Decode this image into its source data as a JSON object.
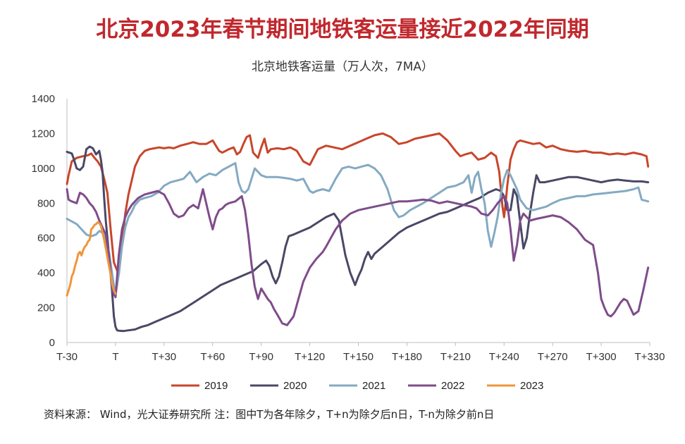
{
  "header": {
    "title": "北京2023年春节期间地铁客运量接近2022年同期",
    "subtitle": "北京地铁客运量（万人次，7MA）"
  },
  "footer": {
    "note": "资料来源： Wind，光大证券研究所 注：图中T为各年除夕，T+n为除夕后n日，T-n为除夕前n日"
  },
  "chart_data": {
    "type": "line",
    "title": "北京地铁客运量（万人次，7MA）",
    "xlabel": "",
    "ylabel": "",
    "xlim": [
      -30,
      330
    ],
    "ylim": [
      0,
      1400
    ],
    "yticks": [
      0,
      200,
      400,
      600,
      800,
      1000,
      1200,
      1400
    ],
    "xtick_values": [
      -30,
      0,
      30,
      60,
      90,
      120,
      150,
      180,
      210,
      240,
      270,
      300,
      330
    ],
    "xtick_labels": [
      "T-30",
      "T",
      "T+30",
      "T+60",
      "T+90",
      "T+120",
      "T+150",
      "T+180",
      "T+210",
      "T+240",
      "T+270",
      "T+300",
      "T+330"
    ],
    "grid": false,
    "legend_position": "bottom",
    "series": [
      {
        "name": "2019",
        "color": "#c8462b",
        "x": [
          -30,
          -29,
          -27,
          -24,
          -20,
          -17,
          -15,
          -13,
          -11,
          -9,
          -7,
          -5,
          -3,
          -1,
          2,
          4,
          6,
          8,
          10,
          12,
          15,
          18,
          21,
          24,
          27,
          30,
          33,
          36,
          40,
          44,
          48,
          52,
          56,
          60,
          62,
          64,
          66,
          70,
          73,
          75,
          77,
          79,
          81,
          83,
          85,
          88,
          90,
          92,
          94,
          96,
          100,
          104,
          108,
          112,
          116,
          120,
          125,
          130,
          135,
          140,
          145,
          150,
          155,
          160,
          165,
          170,
          175,
          180,
          185,
          190,
          195,
          200,
          205,
          210,
          213,
          216,
          220,
          224,
          228,
          232,
          235,
          237,
          238,
          239,
          240,
          241,
          242,
          244,
          246,
          248,
          250,
          254,
          258,
          262,
          266,
          270,
          275,
          280,
          285,
          290,
          295,
          300,
          305,
          310,
          315,
          320,
          325,
          328,
          329
        ],
        "y": [
          910,
          960,
          1040,
          1060,
          1070,
          1075,
          1085,
          1060,
          1040,
          1010,
          940,
          860,
          650,
          460,
          390,
          560,
          740,
          850,
          930,
          1010,
          1070,
          1100,
          1110,
          1115,
          1120,
          1115,
          1120,
          1115,
          1130,
          1140,
          1150,
          1140,
          1140,
          1160,
          1130,
          1100,
          1090,
          1110,
          1120,
          1080,
          1095,
          1140,
          1180,
          1190,
          1090,
          1060,
          1120,
          1170,
          1090,
          1110,
          1115,
          1110,
          1120,
          1100,
          1040,
          1020,
          1110,
          1130,
          1120,
          1110,
          1130,
          1150,
          1170,
          1190,
          1200,
          1180,
          1140,
          1150,
          1170,
          1180,
          1190,
          1200,
          1160,
          1100,
          1070,
          1080,
          1090,
          1050,
          1060,
          1090,
          1070,
          980,
          880,
          780,
          720,
          800,
          900,
          1050,
          1110,
          1150,
          1160,
          1150,
          1140,
          1145,
          1120,
          1130,
          1110,
          1100,
          1095,
          1100,
          1090,
          1090,
          1080,
          1085,
          1080,
          1090,
          1080,
          1070,
          1010
        ]
      },
      {
        "name": "2020",
        "color": "#4a4866",
        "x": [
          -30,
          -27,
          -26,
          -24,
          -22,
          -20,
          -18,
          -16,
          -14,
          -12,
          -10,
          -9,
          -8,
          -7,
          -6,
          -4,
          -2,
          -1,
          0,
          1,
          2,
          3,
          5,
          8,
          12,
          16,
          20,
          25,
          30,
          35,
          40,
          45,
          50,
          55,
          60,
          65,
          70,
          75,
          80,
          85,
          90,
          93,
          95,
          97,
          99,
          101,
          103,
          105,
          107,
          110,
          115,
          120,
          125,
          130,
          135,
          138,
          140,
          142,
          145,
          148,
          150,
          152,
          154,
          156,
          158,
          160,
          165,
          170,
          175,
          180,
          185,
          190,
          195,
          200,
          205,
          210,
          215,
          220,
          225,
          230,
          235,
          238,
          240,
          242,
          244,
          246,
          248,
          250,
          252,
          254,
          256,
          258,
          260,
          262,
          265,
          270,
          275,
          280,
          285,
          290,
          295,
          300,
          305,
          310,
          315,
          320,
          325,
          329
        ],
        "y": [
          1095,
          1085,
          1060,
          1000,
          990,
          1010,
          1110,
          1125,
          1115,
          1080,
          1100,
          1050,
          980,
          830,
          700,
          500,
          280,
          150,
          90,
          70,
          68,
          67,
          66,
          70,
          75,
          90,
          100,
          120,
          140,
          160,
          180,
          210,
          240,
          270,
          300,
          330,
          350,
          370,
          390,
          410,
          450,
          470,
          440,
          380,
          340,
          380,
          460,
          550,
          610,
          620,
          640,
          660,
          690,
          720,
          740,
          700,
          600,
          500,
          400,
          330,
          380,
          420,
          480,
          520,
          480,
          510,
          550,
          590,
          630,
          660,
          680,
          700,
          720,
          740,
          750,
          770,
          790,
          810,
          830,
          860,
          880,
          870,
          840,
          760,
          760,
          880,
          840,
          690,
          540,
          600,
          740,
          860,
          960,
          920,
          920,
          930,
          940,
          950,
          950,
          940,
          930,
          920,
          930,
          935,
          930,
          925,
          925,
          920
        ]
      },
      {
        "name": "2021",
        "color": "#84aac2",
        "x": [
          -30,
          -27,
          -24,
          -21,
          -18,
          -15,
          -12,
          -10,
          -8,
          -6,
          -4,
          -2,
          0,
          2,
          4,
          6,
          8,
          10,
          12,
          15,
          18,
          22,
          26,
          30,
          34,
          38,
          42,
          46,
          50,
          54,
          58,
          62,
          66,
          70,
          74,
          76,
          78,
          80,
          82,
          84,
          86,
          88,
          90,
          93,
          96,
          100,
          104,
          108,
          112,
          116,
          120,
          122,
          124,
          128,
          132,
          136,
          140,
          144,
          148,
          152,
          156,
          160,
          164,
          168,
          170,
          172,
          175,
          178,
          182,
          186,
          190,
          195,
          200,
          205,
          210,
          215,
          218,
          220,
          222,
          224,
          226,
          228,
          230,
          232,
          234,
          236,
          238,
          240,
          242,
          244,
          246,
          248,
          250,
          254,
          258,
          262,
          266,
          270,
          275,
          280,
          285,
          290,
          295,
          300,
          305,
          310,
          315,
          320,
          323,
          325,
          327,
          329
        ],
        "y": [
          710,
          695,
          680,
          650,
          620,
          610,
          620,
          640,
          630,
          590,
          520,
          390,
          270,
          390,
          550,
          660,
          720,
          750,
          790,
          820,
          830,
          840,
          860,
          900,
          920,
          930,
          940,
          980,
          920,
          950,
          970,
          960,
          990,
          1010,
          1030,
          920,
          870,
          860,
          880,
          940,
          1000,
          980,
          960,
          950,
          950,
          950,
          945,
          940,
          930,
          940,
          870,
          860,
          870,
          880,
          870,
          940,
          1000,
          1010,
          1000,
          1010,
          1020,
          1000,
          960,
          880,
          820,
          760,
          720,
          730,
          760,
          780,
          800,
          830,
          860,
          890,
          900,
          920,
          960,
          860,
          950,
          980,
          880,
          800,
          640,
          550,
          630,
          720,
          850,
          940,
          990,
          960,
          920,
          880,
          820,
          770,
          760,
          770,
          780,
          800,
          820,
          830,
          840,
          840,
          850,
          855,
          860,
          865,
          870,
          880,
          890,
          820,
          815,
          810
        ]
      },
      {
        "name": "2022",
        "color": "#7f4c8a",
        "x": [
          -30,
          -29,
          -27,
          -24,
          -22,
          -20,
          -18,
          -16,
          -14,
          -12,
          -10,
          -8,
          -6,
          -4,
          -2,
          0,
          2,
          4,
          6,
          8,
          10,
          14,
          18,
          22,
          26,
          30,
          33,
          36,
          39,
          42,
          45,
          48,
          51,
          54,
          56,
          58,
          60,
          62,
          64,
          66,
          68,
          70,
          74,
          78,
          80,
          82,
          84,
          86,
          88,
          90,
          92,
          94,
          96,
          98,
          100,
          103,
          106,
          110,
          113,
          116,
          120,
          124,
          128,
          130,
          133,
          136,
          140,
          145,
          150,
          155,
          160,
          165,
          170,
          175,
          180,
          185,
          190,
          195,
          200,
          205,
          210,
          215,
          220,
          223,
          226,
          230,
          233,
          236,
          238,
          240,
          242,
          244,
          246,
          248,
          250,
          252,
          254,
          256,
          260,
          265,
          270,
          275,
          280,
          285,
          290,
          295,
          298,
          300,
          302,
          304,
          306,
          308,
          310,
          312,
          314,
          316,
          318,
          320,
          323,
          326,
          329
        ],
        "y": [
          880,
          820,
          810,
          800,
          860,
          850,
          830,
          800,
          780,
          750,
          700,
          660,
          620,
          500,
          300,
          260,
          500,
          650,
          720,
          760,
          790,
          830,
          850,
          860,
          870,
          850,
          800,
          740,
          720,
          730,
          770,
          790,
          770,
          880,
          800,
          720,
          650,
          720,
          760,
          770,
          790,
          800,
          810,
          840,
          760,
          620,
          450,
          320,
          250,
          310,
          280,
          250,
          230,
          190,
          160,
          110,
          100,
          150,
          250,
          350,
          430,
          480,
          520,
          550,
          600,
          650,
          700,
          740,
          760,
          770,
          780,
          790,
          800,
          810,
          810,
          815,
          820,
          815,
          800,
          810,
          800,
          790,
          780,
          770,
          740,
          730,
          760,
          800,
          820,
          840,
          800,
          650,
          470,
          560,
          700,
          740,
          720,
          700,
          710,
          720,
          730,
          720,
          690,
          650,
          590,
          560,
          400,
          250,
          200,
          160,
          150,
          170,
          200,
          230,
          250,
          240,
          200,
          160,
          180,
          300,
          430
        ]
      },
      {
        "name": "2023",
        "color": "#f0953a",
        "x": [
          -30,
          -29,
          -28,
          -27,
          -26,
          -25,
          -24,
          -23,
          -22,
          -21,
          -20,
          -19,
          -18,
          -17,
          -16,
          -15,
          -14,
          -13,
          -12,
          -11,
          -10,
          -9,
          -8,
          -7,
          -6,
          -5,
          -4,
          -3,
          -2,
          -1,
          0
        ],
        "y": [
          270,
          300,
          330,
          380,
          400,
          440,
          470,
          510,
          520,
          500,
          530,
          550,
          560,
          580,
          590,
          650,
          660,
          675,
          680,
          690,
          685,
          670,
          630,
          590,
          540,
          490,
          440,
          390,
          330,
          300,
          280
        ]
      }
    ]
  }
}
